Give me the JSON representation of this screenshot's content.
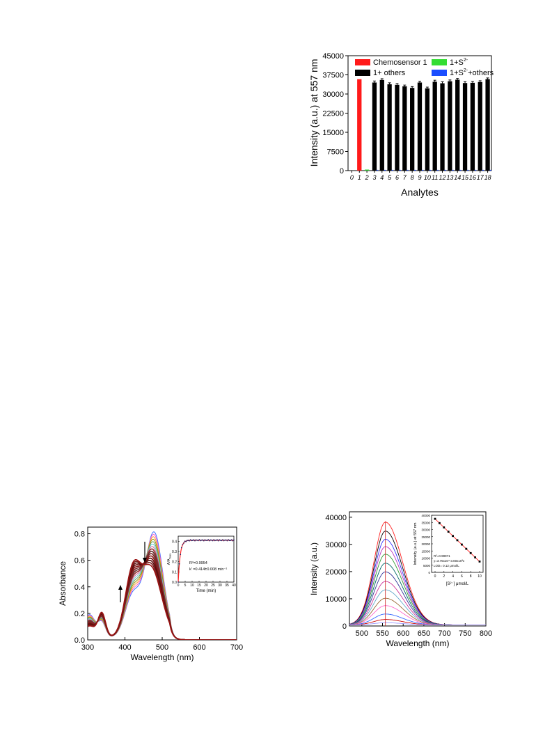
{
  "chart_data": [
    {
      "type": "bar",
      "ylabel": "Intensity (a.u.) at 557 nm",
      "xlabel": "Analytes",
      "ylim": [
        0,
        45000
      ],
      "yticks": [
        "0",
        "7500",
        "15000",
        "22500",
        "30000",
        "37500",
        "45000"
      ],
      "ytick_values": [
        0,
        7500,
        15000,
        22500,
        30000,
        37500,
        45000
      ],
      "xticks": [
        "0",
        "1",
        "2",
        "3",
        "4",
        "5",
        "6",
        "7",
        "8",
        "9",
        "10",
        "11",
        "12",
        "13",
        "14",
        "15",
        "16",
        "17",
        "18"
      ],
      "legend_position": "top",
      "legend": [
        {
          "label": "Chemosensor 1",
          "color": "#ff1a1a"
        },
        {
          "label": "1+S",
          "sup": "2-",
          "color": "#33dd33"
        },
        {
          "label": "1+ others",
          "color": "#000000"
        },
        {
          "label": "1+S",
          "sup": "2-",
          "label2": "+others",
          "color": "#1a4dff"
        }
      ],
      "series": [
        {
          "name": "Chemosensor 1",
          "color": "#ff1a1a",
          "x": [
            1
          ],
          "values": [
            35800
          ]
        },
        {
          "name": "1+S2-",
          "color": "#33dd33",
          "x": [
            2
          ],
          "values": [
            400
          ]
        },
        {
          "name": "1+ others",
          "color": "#000000",
          "x": [
            3,
            4,
            5,
            6,
            7,
            8,
            9,
            10,
            11,
            12,
            13,
            14,
            15,
            16,
            17,
            18
          ],
          "values": [
            34500,
            35500,
            33800,
            33600,
            33000,
            32400,
            34500,
            32200,
            34800,
            34200,
            35000,
            35600,
            34300,
            34400,
            34700,
            35800
          ],
          "errors": [
            600,
            500,
            600,
            500,
            500,
            500,
            500,
            500,
            600,
            600,
            500,
            500,
            500,
            500,
            500,
            500
          ]
        },
        {
          "name": "1+S2- +others",
          "color": "#1a4dff",
          "x": [
            3,
            4,
            5,
            6,
            7,
            8,
            9,
            10,
            11,
            12,
            13,
            14,
            15,
            16,
            17,
            18
          ],
          "values": [
            300,
            300,
            300,
            300,
            300,
            300,
            300,
            300,
            300,
            300,
            300,
            300,
            300,
            300,
            300,
            300
          ]
        }
      ]
    },
    {
      "type": "line",
      "ylabel": "Absorbance",
      "xlabel": "Wavelength (nm)",
      "xlim": [
        300,
        700
      ],
      "ylim": [
        0,
        0.85
      ],
      "xticks": [
        "300",
        "400",
        "500",
        "600",
        "700"
      ],
      "xtick_values": [
        300,
        400,
        500,
        600,
        700
      ],
      "yticks": [
        "0.0",
        "0.2",
        "0.4",
        "0.6",
        "0.8"
      ],
      "ytick_values": [
        0,
        0.2,
        0.4,
        0.6,
        0.8
      ],
      "peak_nm": [
        478,
        470
      ],
      "peak_values": [
        0.79,
        0.52
      ],
      "inset": {
        "type": "line",
        "ylabel": "A/A",
        "ylabel_sub": "max",
        "xlabel": "Time (min)",
        "xlim": [
          0,
          40
        ],
        "ylim": [
          0,
          0.45
        ],
        "xticks": [
          "0",
          "5",
          "10",
          "15",
          "20",
          "25",
          "30",
          "35",
          "40"
        ],
        "yticks": [
          "0.0",
          "0.1",
          "0.2",
          "0.3",
          "0.4"
        ],
        "annotation_r2": "R²=0.9954",
        "annotation_k": "k' =0.414±0.008 min⁻¹"
      }
    },
    {
      "type": "line",
      "ylabel": "Intensity (a.u.)",
      "xlabel": "Wavelength (nm)",
      "xlim": [
        470,
        800
      ],
      "ylim": [
        0,
        42000
      ],
      "xticks": [
        "500",
        "550",
        "600",
        "650",
        "700",
        "750",
        "800"
      ],
      "xtick_values": [
        500,
        550,
        600,
        650,
        700,
        750,
        800
      ],
      "yticks": [
        "0",
        "10000",
        "20000",
        "30000",
        "40000"
      ],
      "ytick_values": [
        0,
        10000,
        20000,
        30000,
        40000
      ],
      "peak_nm": 557,
      "peak_values": [
        37800,
        34500,
        31500,
        28800,
        26000,
        22700,
        19500,
        16000,
        12900,
        9800,
        7100,
        4000,
        2000,
        800
      ],
      "inset": {
        "type": "scatter",
        "ylabel": "Intensity (a.u.) at 557 nm",
        "xlabel": "[S²⁻] μmol/L",
        "xlim": [
          0,
          10
        ],
        "ylim": [
          0,
          40000
        ],
        "xticks": [
          "0",
          "2",
          "4",
          "6",
          "8",
          "10"
        ],
        "yticks": [
          "0",
          "5000",
          "10000",
          "15000",
          "20000",
          "25000",
          "30000",
          "35000",
          "40000"
        ],
        "x": [
          0,
          1,
          2,
          3,
          4,
          5,
          6,
          7,
          8,
          9,
          10
        ],
        "y": [
          37500,
          34500,
          31500,
          28500,
          25500,
          22500,
          19500,
          16500,
          13500,
          10500,
          7600
        ],
        "annotation_r2": "R²=0.99971",
        "annotation_eq": "y=3.75x10⁴-3.00x10³x",
        "annotation_lod": "LOD= 0.12 μmol/L"
      }
    }
  ]
}
